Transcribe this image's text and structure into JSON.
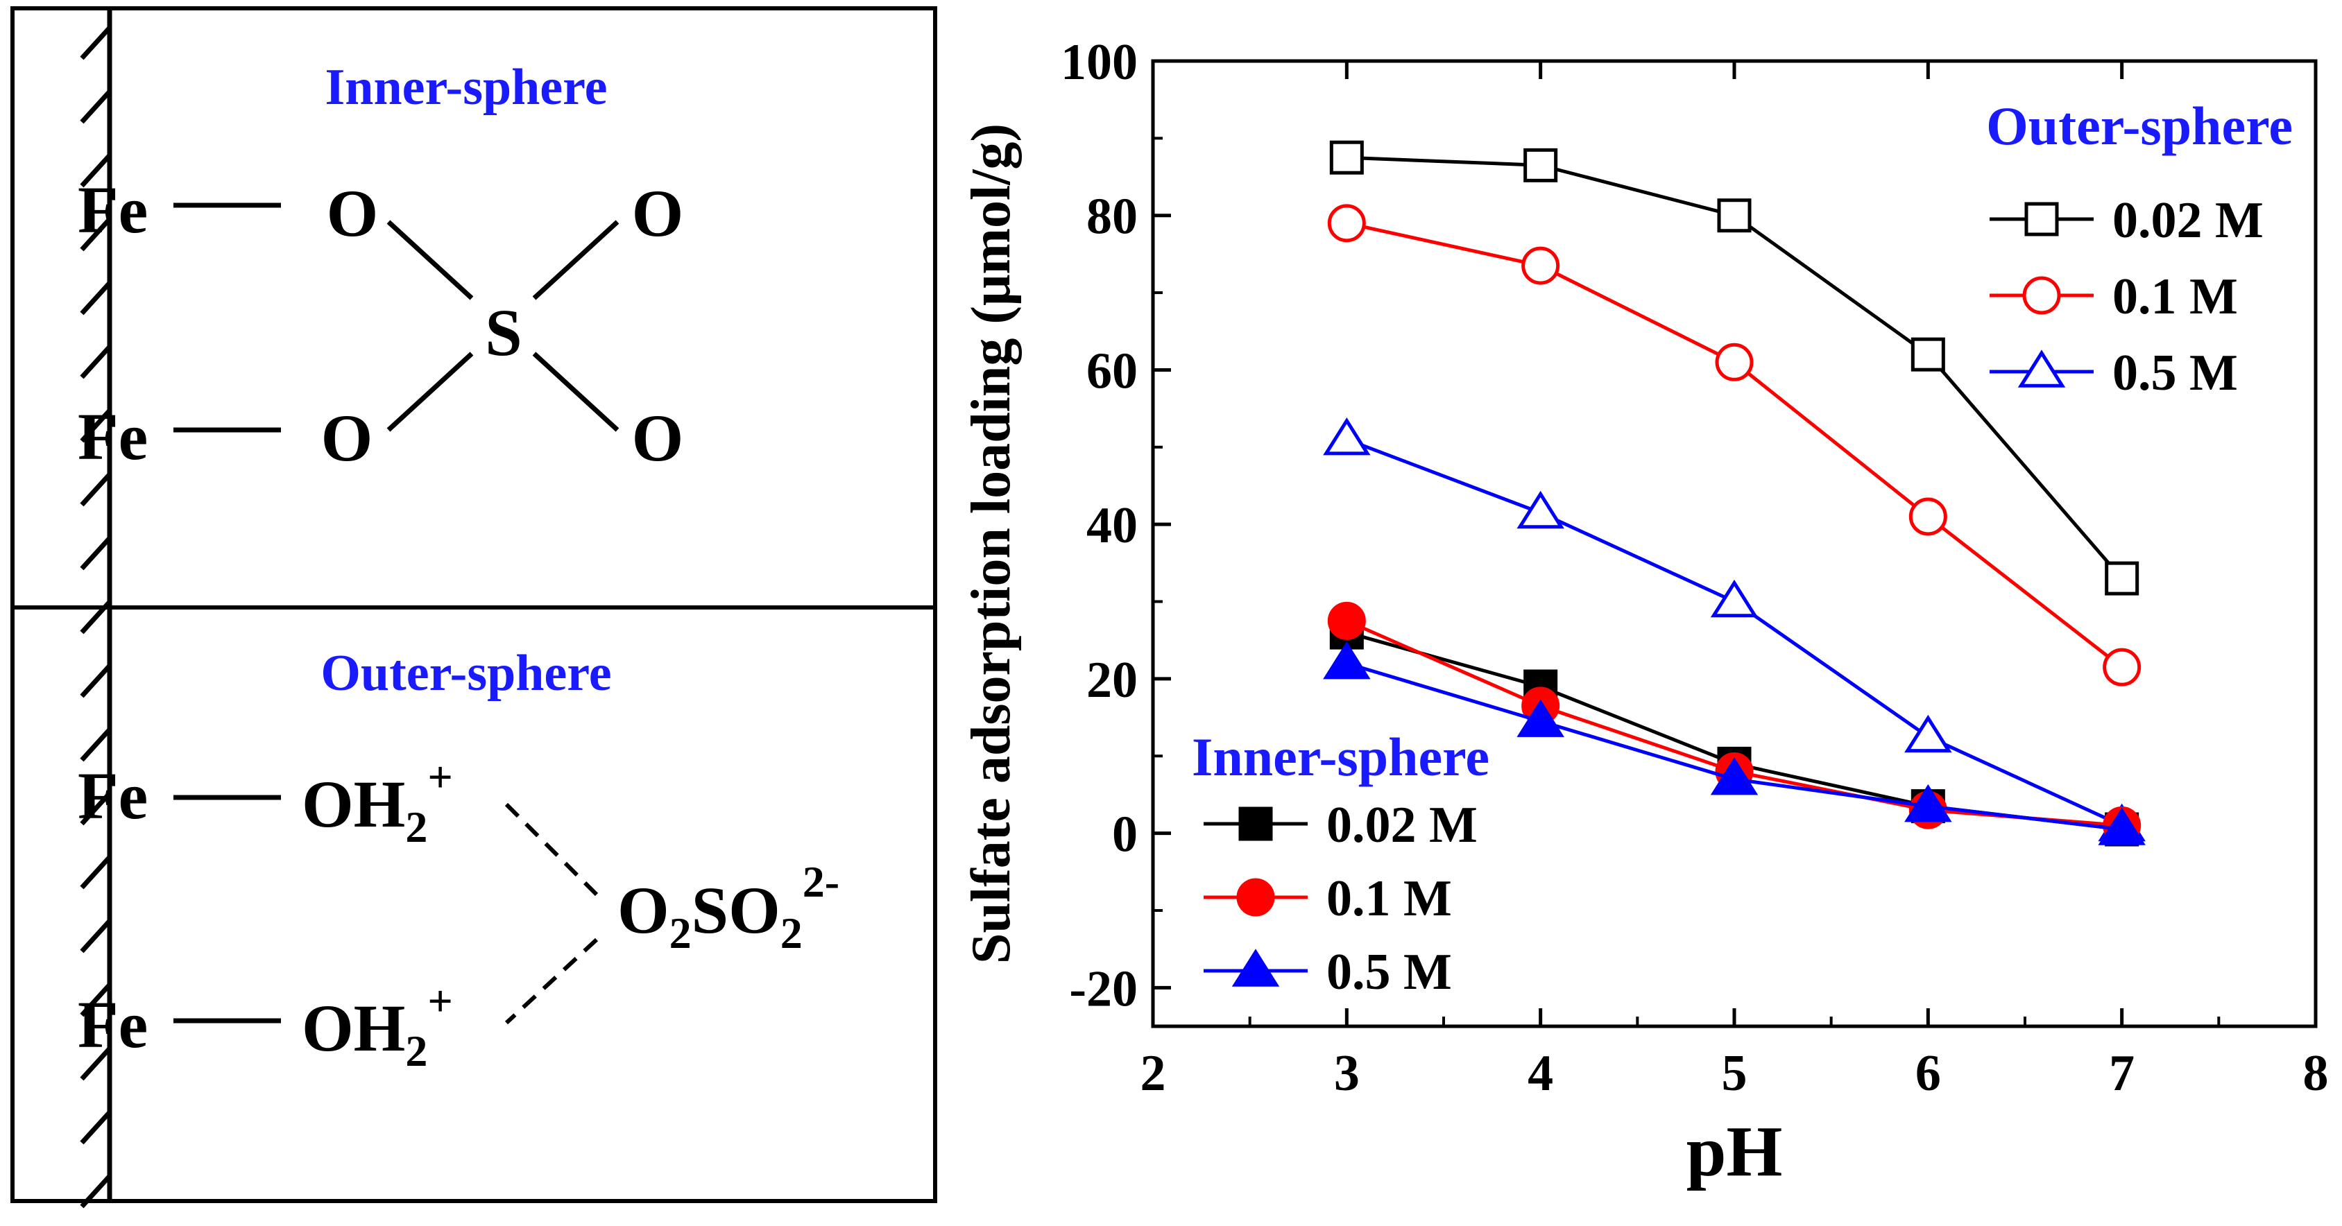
{
  "diagram": {
    "inner": {
      "title": "Inner-sphere",
      "fe_top": "Fe",
      "fe_bottom": "Fe",
      "o_left_top": "O",
      "o_right_top": "O",
      "o_left_bottom": "O",
      "o_right_bottom": "O",
      "s": "S"
    },
    "outer": {
      "title": "Outer-sphere",
      "fe_top": "Fe",
      "fe_bottom": "Fe",
      "oh2_top": "OH",
      "oh2_top_sub": "2",
      "oh2_top_sup": "+",
      "oh2_bottom": "OH",
      "oh2_bottom_sub": "2",
      "oh2_bottom_sup": "+",
      "sulfate_o1": "O",
      "sulfate_sub1": "2",
      "sulfate_so": "SO",
      "sulfate_sub2": "2",
      "sulfate_sup": "2-"
    }
  },
  "colors": {
    "black": "#000000",
    "red": "#ff0000",
    "blue": "#0000ff",
    "title_blue": "#1a1aff"
  },
  "chart_data": {
    "type": "line",
    "xlabel": "pH",
    "ylabel": "Sulfate adsorption loading (μmol/g)",
    "xlim": [
      2,
      8
    ],
    "ylim": [
      -25,
      100
    ],
    "xticks": [
      2,
      3,
      4,
      5,
      6,
      7,
      8
    ],
    "yticks": [
      -20,
      0,
      20,
      40,
      60,
      80,
      100
    ],
    "x": [
      3,
      4,
      5,
      6,
      7
    ],
    "legends": [
      {
        "title": "Outer-sphere",
        "placement": "top-right"
      },
      {
        "title": "Inner-sphere",
        "placement": "bottom-left"
      }
    ],
    "series": [
      {
        "name": "0.02 M",
        "group": "Outer-sphere",
        "color": "#000000",
        "marker": "square-open",
        "values": [
          87.5,
          86.5,
          80.0,
          62.0,
          33.0
        ]
      },
      {
        "name": "0.1 M",
        "group": "Outer-sphere",
        "color": "#ff0000",
        "marker": "circle-open",
        "values": [
          79.0,
          73.5,
          61.0,
          41.0,
          21.5
        ]
      },
      {
        "name": "0.5 M",
        "group": "Outer-sphere",
        "color": "#0000ff",
        "marker": "triangle-open",
        "values": [
          51.0,
          41.5,
          30.0,
          12.5,
          1.0
        ]
      },
      {
        "name": "0.02 M",
        "group": "Inner-sphere",
        "color": "#000000",
        "marker": "square-filled",
        "values": [
          26.0,
          19.0,
          9.0,
          3.5,
          0.5
        ]
      },
      {
        "name": "0.1 M",
        "group": "Inner-sphere",
        "color": "#ff0000",
        "marker": "circle-filled",
        "values": [
          27.5,
          16.5,
          8.0,
          3.0,
          1.0
        ]
      },
      {
        "name": "0.5 M",
        "group": "Inner-sphere",
        "color": "#0000ff",
        "marker": "triangle-filled",
        "values": [
          22.0,
          14.5,
          7.0,
          3.5,
          0.5
        ]
      }
    ]
  }
}
